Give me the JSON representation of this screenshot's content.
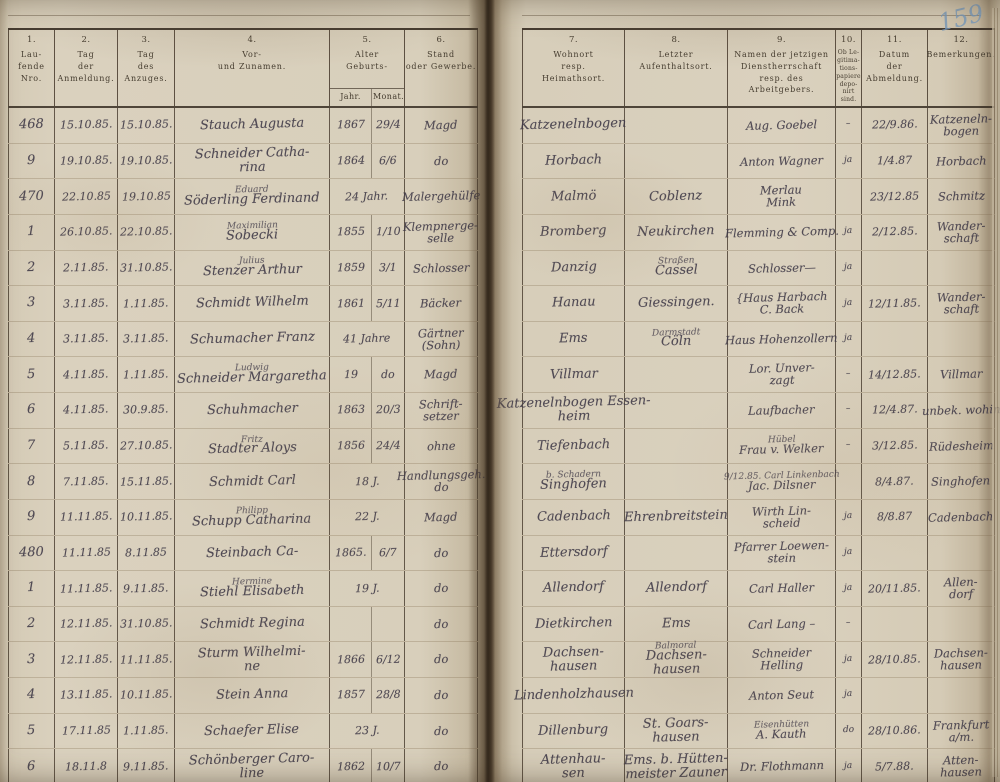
{
  "page_number": "159",
  "colors": {
    "paper": "#d8cfbb",
    "ink": "#3e3846",
    "printed_text": "#453c2f",
    "rule_line": "#7d6a50",
    "blue_pencil": "#7799bb"
  },
  "left": {
    "cols": [
      {
        "num": "1.",
        "label": "Lau-\nfende\nNro."
      },
      {
        "num": "2.",
        "label": "Tag\nder Anmeldung."
      },
      {
        "num": "3.",
        "label": "Tag\ndes Anzuges."
      },
      {
        "num": "4.",
        "label": "Vor-\nund Zunamen."
      },
      {
        "num": "5.",
        "label": "Alter\nGeburts-",
        "sub1": "Jahr.",
        "sub2": "Monat."
      },
      {
        "num": "6.",
        "label": "Stand\noder Gewerbe."
      }
    ],
    "rows": [
      {
        "nro": "468",
        "d1": "15.10.85.",
        "d2": "15.10.85.",
        "name": "Stauch Augusta",
        "jahr": "1867",
        "monat": "29/4",
        "stand": "Magd"
      },
      {
        "nro": "9",
        "d1": "19.10.85.",
        "d2": "19.10.85.",
        "name": "Schneider Catha-\nrina",
        "jahr": "1864",
        "monat": "6/6",
        "stand": "do"
      },
      {
        "nro": "470",
        "d1": "22.10.85",
        "d2": "19.10.85",
        "name": "Söderling Ferdinand",
        "name_sup": "Eduard",
        "age": "24 Jahr.",
        "stand": "Malergehülfe"
      },
      {
        "nro": "1",
        "d1": "26.10.85.",
        "d2": "22.10.85.",
        "name": "Sobecki",
        "name_sup": "Maximilian",
        "jahr": "1855",
        "monat": "1/10",
        "stand": "Klempnerge-\nselle"
      },
      {
        "nro": "2",
        "d1": "2.11.85.",
        "d2": "31.10.85.",
        "name": "Stenzer Arthur",
        "name_sup": "Julius",
        "jahr": "1859",
        "monat": "3/1",
        "stand": "Schlosser"
      },
      {
        "nro": "3",
        "d1": "3.11.85.",
        "d2": "1.11.85.",
        "name": "Schmidt Wilhelm",
        "jahr": "1861",
        "monat": "5/11",
        "stand": "Bäcker"
      },
      {
        "nro": "4",
        "d1": "3.11.85.",
        "d2": "3.11.85.",
        "name": "Schumacher Franz",
        "age": "41 Jahre",
        "stand": "Gärtner\n(Sohn)"
      },
      {
        "nro": "5",
        "d1": "4.11.85.",
        "d2": "1.11.85.",
        "name": "Schneider Margaretha",
        "name_sup": "Ludwig",
        "jahr": "19",
        "monat": "do",
        "stand": "Magd"
      },
      {
        "nro": "6",
        "d1": "4.11.85.",
        "d2": "30.9.85.",
        "name": "Schuhmacher",
        "jahr": "1863",
        "monat": "20/3",
        "stand": "Schrift-\nsetzer"
      },
      {
        "nro": "7",
        "d1": "5.11.85.",
        "d2": "27.10.85.",
        "name": "Stadter Aloys",
        "name_sup": "Fritz",
        "jahr": "1856",
        "monat": "24/4",
        "stand": "ohne"
      },
      {
        "nro": "8",
        "d1": "7.11.85.",
        "d2": "15.11.85.",
        "name": "Schmidt Carl",
        "age": "18 J.",
        "stand": "Handlungsgeh.\ndo"
      },
      {
        "nro": "9",
        "d1": "11.11.85.",
        "d2": "10.11.85.",
        "name": "Schupp Catharina",
        "name_sup": "Philipp",
        "age": "22 J.",
        "stand": "Magd"
      },
      {
        "nro": "480",
        "d1": "11.11.85",
        "d2": "8.11.85",
        "name": "Steinbach Ca-",
        "jahr": "1865.",
        "monat": "6/7",
        "stand": "do"
      },
      {
        "nro": "1",
        "d1": "11.11.85.",
        "d2": "9.11.85.",
        "name": "Stiehl Elisabeth",
        "name_sup": "Hermine",
        "age": "19 J.",
        "stand": "do"
      },
      {
        "nro": "2",
        "d1": "12.11.85.",
        "d2": "31.10.85.",
        "name": "Schmidt Regina",
        "jahr": "",
        "monat": "",
        "stand": "do"
      },
      {
        "nro": "3",
        "d1": "12.11.85.",
        "d2": "11.11.85.",
        "name": "Sturm Wilhelmi-\nne",
        "jahr": "1866",
        "monat": "6/12",
        "stand": "do"
      },
      {
        "nro": "4",
        "d1": "13.11.85.",
        "d2": "10.11.85.",
        "name": "Stein Anna",
        "jahr": "1857",
        "monat": "28/8",
        "stand": "do"
      },
      {
        "nro": "5",
        "d1": "17.11.85",
        "d2": "1.11.85.",
        "name": "Schaefer Elise",
        "age": "23 J.",
        "stand": "do"
      },
      {
        "nro": "6",
        "d1": "18.11.8",
        "d2": "9.11.85.",
        "name": "Schönberger Caro-\nline",
        "jahr": "1862",
        "monat": "10/7",
        "stand": "do"
      }
    ]
  },
  "right": {
    "cols": [
      {
        "num": "7.",
        "label": "Wohnort\nresp.\nHeimathsort."
      },
      {
        "num": "8.",
        "label": "Letzter\nAufenthaltsort."
      },
      {
        "num": "9.",
        "label": "Namen der jetzigen\nDienstherrschaft\nresp. des Arbeitgebers."
      },
      {
        "num": "10.",
        "label": "Ob Le-\ngitima-\ntions-\npapiere\ndepo-\nnirt\nsind."
      },
      {
        "num": "11.",
        "label": "Datum\nder Abmeldung."
      },
      {
        "num": "12.",
        "label": "Bemerkungen."
      }
    ],
    "rows": [
      {
        "w": "Katzenelnbogen",
        "a": "",
        "d": "Aug. Goebel",
        "dep": "–",
        "dat": "22/9.86.",
        "bem": "Katzeneln-\nbogen"
      },
      {
        "w": "Horbach",
        "a": "",
        "d": "Anton Wagner",
        "dep": "ja",
        "dat": "1/4.87",
        "bem": "Horbach"
      },
      {
        "w": "Malmö",
        "a": "Coblenz",
        "d": "Merlau\nMink",
        "dep": "",
        "dat": "23/12.85",
        "bem": "Schmitz"
      },
      {
        "w": "Bromberg",
        "a": "Neukirchen",
        "d": "Flemming & Comp.",
        "dep": "ja",
        "dat": "2/12.85.",
        "bem": "Wander-\nschaft"
      },
      {
        "w": "Danzig",
        "a": "Cassel",
        "a_sup": "Straßen",
        "d": "Schlosser—",
        "dep": "ja",
        "dat": "",
        "bem": ""
      },
      {
        "w": "Hanau",
        "a": "Giessingen.",
        "d": "{Haus Harbach\nC. Back",
        "dep": "ja",
        "dat": "12/11.85.",
        "bem": "Wander-\nschaft"
      },
      {
        "w": "Ems",
        "a": "Cöln",
        "a_sup": "Darmstadt",
        "d": "Haus Hohenzollern",
        "dep": "ja",
        "dat": "",
        "bem": ""
      },
      {
        "w": "Villmar",
        "a": "",
        "d": "Lor. Unver-\nzagt",
        "dep": "–",
        "dat": "14/12.85.",
        "bem": "Villmar"
      },
      {
        "w": "Katzenelnbogen Essen-\nheim",
        "a": "",
        "d": "Laufbacher",
        "dep": "–",
        "dat": "12/4.87.",
        "bem": "unbek. wohin"
      },
      {
        "w": "Tiefenbach",
        "a": "",
        "d": "Frau v. Welker",
        "d_sup": "Hübel",
        "dep": "–",
        "dat": "3/12.85.",
        "bem": "Rüdesheim"
      },
      {
        "w": "Singhofen",
        "w_sup": "b. Schadern",
        "a": "",
        "d": "Jac. Dilsner",
        "d_sup": "9/12.85. Carl Linkenbach",
        "dep": "",
        "dat": "8/4.87.",
        "bem": "Singhofen"
      },
      {
        "w": "Cadenbach",
        "a": "Ehrenbreitstein",
        "d": "Wirth Lin-\nscheid",
        "dep": "ja",
        "dat": "8/8.87",
        "bem": "Cadenbach"
      },
      {
        "w": "Ettersdorf",
        "a": "",
        "d": "Pfarrer Loewen-\nstein",
        "dep": "ja",
        "dat": "",
        "bem": ""
      },
      {
        "w": "Allendorf",
        "a": "Allendorf",
        "d": "Carl Haller",
        "dep": "ja",
        "dat": "20/11.85.",
        "bem": "Allen-\ndorf"
      },
      {
        "w": "Dietkirchen",
        "a": "Ems",
        "d": "Carl Lang –",
        "dep": "–",
        "dat": "",
        "bem": ""
      },
      {
        "w": "Dachsen-\nhausen",
        "a": "Dachsen-\nhausen",
        "a_sup": "Balmoral",
        "d": "Schneider\nHelling",
        "dep": "ja",
        "dat": "28/10.85.",
        "bem": "Dachsen-\nhausen"
      },
      {
        "w": "Lindenholzhausen",
        "a": "",
        "d": "Anton Seut",
        "dep": "ja",
        "dat": "",
        "bem": ""
      },
      {
        "w": "Dillenburg",
        "a": "St. Goars-\nhausen",
        "d": "A. Kauth",
        "d_sup": "Eisenhütten",
        "dep": "do",
        "dat": "28/10.86.",
        "bem": "Frankfurt\na/m."
      },
      {
        "w": "Attenhau-\nsen",
        "a": "Ems. b. Hütten-\nmeister Zauner",
        "d": "Dr. Flothmann",
        "dep": "ja",
        "dat": "5/7.88.",
        "bem": "Atten-\nhausen"
      }
    ]
  }
}
